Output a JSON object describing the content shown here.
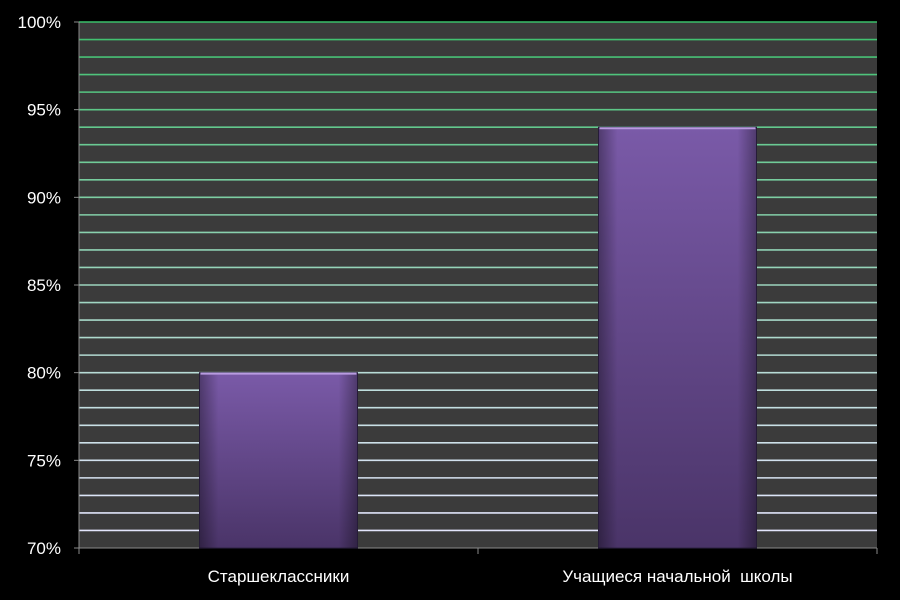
{
  "chart_data": {
    "type": "bar",
    "categories": [
      "Старшеклассники",
      "Учащиеся начальной  школы"
    ],
    "values": [
      80,
      94
    ],
    "unit": "%",
    "ylim": [
      70,
      100
    ],
    "y_ticks": [
      70,
      75,
      80,
      85,
      90,
      95,
      100
    ],
    "y_tick_labels": [
      "70%",
      "75%",
      "80%",
      "85%",
      "90%",
      "95%",
      "100%"
    ],
    "minor_grid_step": 1,
    "grid": true,
    "legend": "none",
    "title": "",
    "xlabel": "",
    "ylabel": "",
    "colors": {
      "background": "#000000",
      "plot_area": "#3b3b3b",
      "bar_top": "#7a5aa8",
      "bar_bottom": "#4a3468",
      "grid_low": "#e6e6ff",
      "grid_high": "#3bbf6a",
      "text": "#ffffff"
    }
  }
}
